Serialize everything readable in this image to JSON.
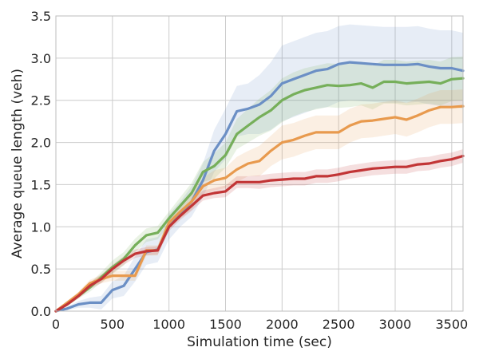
{
  "chart_data": {
    "type": "line",
    "title": "",
    "xlabel": "Simulation time (sec)",
    "ylabel": "Average queue length (veh)",
    "xlim": [
      0,
      3600
    ],
    "ylim": [
      0,
      3.5
    ],
    "xticks": [
      0,
      500,
      1000,
      1500,
      2000,
      2500,
      3000,
      3500
    ],
    "yticks": [
      0.0,
      0.5,
      1.0,
      1.5,
      2.0,
      2.5,
      3.0,
      3.5
    ],
    "xtick_labels": [
      "0",
      "500",
      "1000",
      "1500",
      "2000",
      "2500",
      "3000",
      "3500"
    ],
    "ytick_labels": [
      "0.0",
      "0.5",
      "1.0",
      "1.5",
      "2.0",
      "2.5",
      "3.0",
      "3.5"
    ],
    "grid": true,
    "legend": "none",
    "x": [
      0,
      100,
      200,
      300,
      400,
      500,
      600,
      700,
      800,
      900,
      1000,
      1100,
      1200,
      1300,
      1400,
      1500,
      1600,
      1700,
      1800,
      1900,
      2000,
      2100,
      2200,
      2300,
      2400,
      2500,
      2600,
      2700,
      2800,
      2900,
      3000,
      3100,
      3200,
      3300,
      3400,
      3500,
      3600
    ],
    "series": [
      {
        "color": "#6b8fc5",
        "values": [
          0.0,
          0.03,
          0.08,
          0.1,
          0.1,
          0.25,
          0.3,
          0.5,
          0.7,
          0.73,
          1.0,
          1.15,
          1.3,
          1.55,
          1.9,
          2.1,
          2.37,
          2.4,
          2.45,
          2.55,
          2.7,
          2.75,
          2.8,
          2.85,
          2.87,
          2.93,
          2.95,
          2.94,
          2.93,
          2.92,
          2.92,
          2.92,
          2.93,
          2.9,
          2.88,
          2.88,
          2.85
        ],
        "band": [
          0.0,
          0.02,
          0.04,
          0.06,
          0.08,
          0.1,
          0.12,
          0.15,
          0.15,
          0.15,
          0.15,
          0.15,
          0.18,
          0.2,
          0.25,
          0.3,
          0.3,
          0.3,
          0.35,
          0.4,
          0.45,
          0.45,
          0.45,
          0.45,
          0.45,
          0.45,
          0.45,
          0.45,
          0.45,
          0.45,
          0.45,
          0.45,
          0.45,
          0.45,
          0.45,
          0.45,
          0.45
        ]
      },
      {
        "color": "#76af5a",
        "values": [
          0.0,
          0.08,
          0.18,
          0.28,
          0.4,
          0.52,
          0.62,
          0.78,
          0.9,
          0.93,
          1.1,
          1.25,
          1.4,
          1.65,
          1.72,
          1.85,
          2.1,
          2.2,
          2.3,
          2.38,
          2.5,
          2.57,
          2.62,
          2.65,
          2.68,
          2.67,
          2.68,
          2.7,
          2.65,
          2.72,
          2.72,
          2.7,
          2.71,
          2.72,
          2.7,
          2.75,
          2.76
        ],
        "band": [
          0.0,
          0.02,
          0.03,
          0.05,
          0.06,
          0.08,
          0.08,
          0.08,
          0.08,
          0.08,
          0.08,
          0.1,
          0.12,
          0.12,
          0.15,
          0.15,
          0.18,
          0.2,
          0.22,
          0.24,
          0.26,
          0.26,
          0.26,
          0.26,
          0.26,
          0.26,
          0.26,
          0.26,
          0.26,
          0.26,
          0.26,
          0.26,
          0.26,
          0.26,
          0.26,
          0.26,
          0.26
        ]
      },
      {
        "color": "#e89a4e",
        "values": [
          0.0,
          0.1,
          0.2,
          0.33,
          0.38,
          0.42,
          0.42,
          0.42,
          0.72,
          0.72,
          1.05,
          1.18,
          1.3,
          1.48,
          1.55,
          1.58,
          1.68,
          1.75,
          1.78,
          1.9,
          2.0,
          2.03,
          2.08,
          2.12,
          2.12,
          2.12,
          2.2,
          2.25,
          2.26,
          2.28,
          2.3,
          2.27,
          2.32,
          2.38,
          2.42,
          2.42,
          2.43
        ],
        "band": [
          0.0,
          0.02,
          0.03,
          0.04,
          0.05,
          0.06,
          0.06,
          0.06,
          0.06,
          0.06,
          0.06,
          0.08,
          0.1,
          0.1,
          0.12,
          0.12,
          0.15,
          0.15,
          0.18,
          0.18,
          0.2,
          0.2,
          0.2,
          0.2,
          0.2,
          0.2,
          0.2,
          0.2,
          0.2,
          0.2,
          0.2,
          0.2,
          0.2,
          0.2,
          0.2,
          0.2,
          0.2
        ]
      },
      {
        "color": "#c23536",
        "values": [
          0.0,
          0.08,
          0.18,
          0.3,
          0.38,
          0.5,
          0.6,
          0.68,
          0.71,
          0.72,
          1.0,
          1.13,
          1.25,
          1.37,
          1.4,
          1.42,
          1.53,
          1.53,
          1.53,
          1.55,
          1.56,
          1.57,
          1.57,
          1.6,
          1.6,
          1.62,
          1.65,
          1.67,
          1.69,
          1.7,
          1.71,
          1.71,
          1.74,
          1.75,
          1.78,
          1.8,
          1.84
        ],
        "band": [
          0.0,
          0.02,
          0.03,
          0.04,
          0.05,
          0.05,
          0.05,
          0.05,
          0.05,
          0.05,
          0.05,
          0.05,
          0.06,
          0.06,
          0.06,
          0.07,
          0.07,
          0.07,
          0.08,
          0.08,
          0.08,
          0.08,
          0.08,
          0.08,
          0.08,
          0.08,
          0.08,
          0.08,
          0.08,
          0.08,
          0.08,
          0.08,
          0.08,
          0.08,
          0.08,
          0.08,
          0.08
        ]
      }
    ]
  }
}
